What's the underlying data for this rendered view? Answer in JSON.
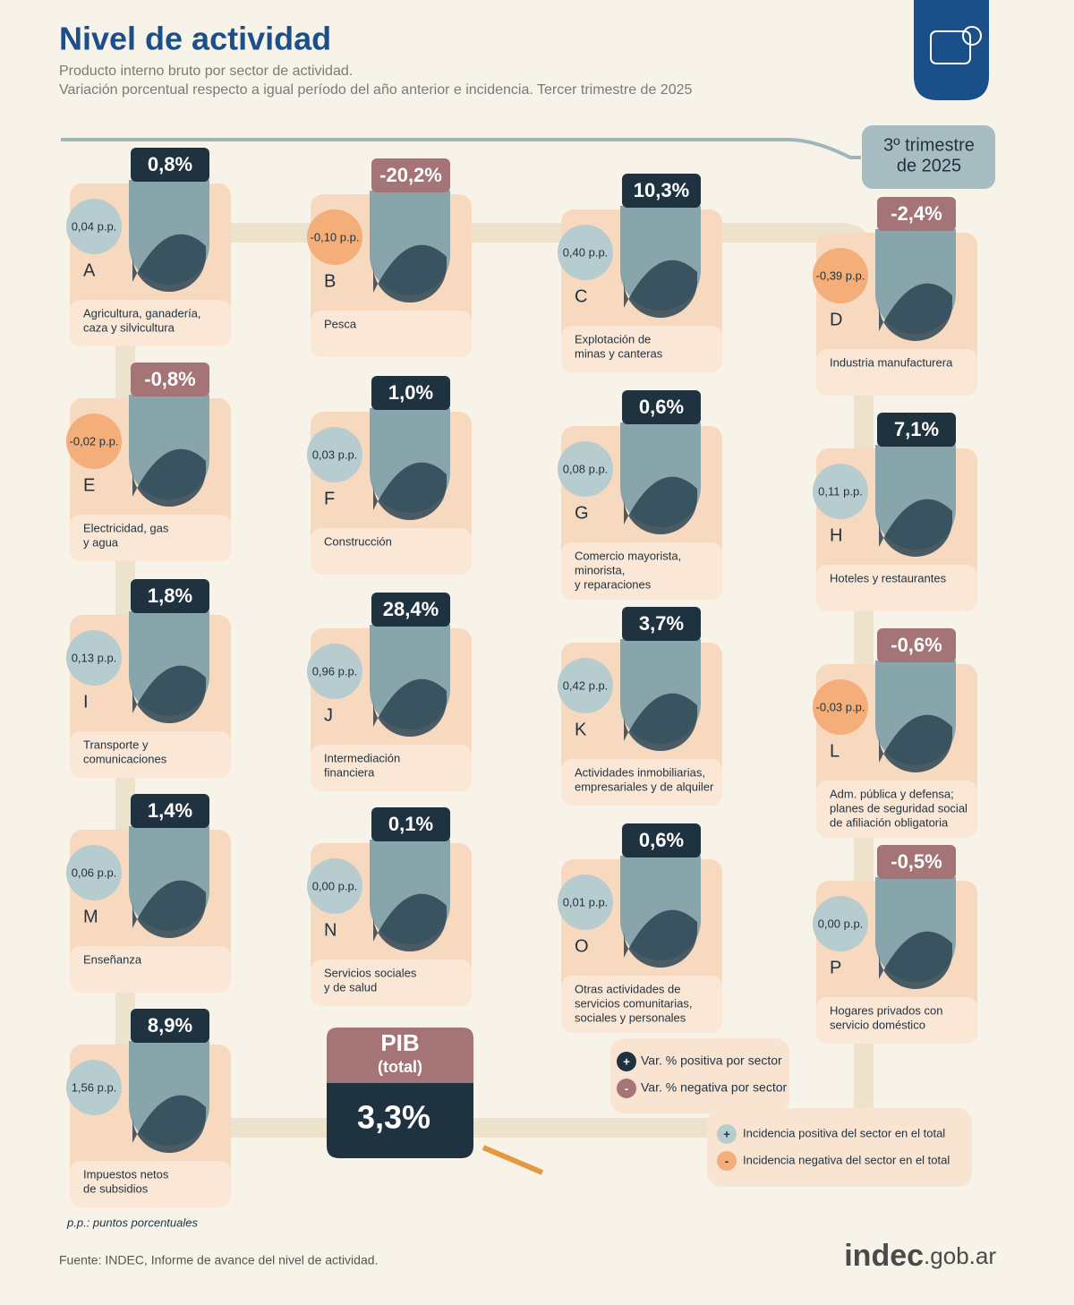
{
  "header": {
    "title": "Nivel de actividad",
    "subtitle": [
      "Producto interno bruto por sector de actividad.",
      "Variación porcentual respecto a igual período del año anterior e incidencia. Tercer trimestre de 2025"
    ]
  },
  "period": [
    "3º trimestre",
    "de 2025"
  ],
  "sectors": [
    {
      "letter": "A",
      "name": [
        "Agricultura, ganadería,",
        "caza y silvicultura"
      ],
      "variation": "0,8%",
      "incidence": "0,04 p.p."
    },
    {
      "letter": "B",
      "name": [
        "Pesca"
      ],
      "variation": "-20,2%",
      "incidence": "-0,10 p.p."
    },
    {
      "letter": "C",
      "name": [
        "Explotación de",
        "minas y canteras"
      ],
      "variation": "10,3%",
      "incidence": "0,40 p.p."
    },
    {
      "letter": "D",
      "name": [
        "Industria manufacturera"
      ],
      "variation": "-2,4%",
      "incidence": "-0,39 p.p."
    },
    {
      "letter": "E",
      "name": [
        "Electricidad, gas",
        "y agua"
      ],
      "variation": "-0,8%",
      "incidence": "-0,02 p.p."
    },
    {
      "letter": "F",
      "name": [
        "Construcción"
      ],
      "variation": "1,0%",
      "incidence": "0,03 p.p."
    },
    {
      "letter": "G",
      "name": [
        "Comercio mayorista,",
        "minorista,",
        "y reparaciones"
      ],
      "variation": "0,6%",
      "incidence": "0,08 p.p."
    },
    {
      "letter": "H",
      "name": [
        "Hoteles y restaurantes"
      ],
      "variation": "7,1%",
      "incidence": "0,11 p.p."
    },
    {
      "letter": "I",
      "name": [
        "Transporte y",
        "comunicaciones"
      ],
      "variation": "1,8%",
      "incidence": "0,13 p.p."
    },
    {
      "letter": "J",
      "name": [
        "Intermediación",
        "financiera"
      ],
      "variation": "28,4%",
      "incidence": "0,96 p.p."
    },
    {
      "letter": "K",
      "name": [
        "Actividades inmobiliarias,",
        "empresariales y de alquiler"
      ],
      "variation": "3,7%",
      "incidence": "0,42 p.p."
    },
    {
      "letter": "L",
      "name": [
        "Adm. pública y defensa;",
        "planes de seguridad social",
        "de afiliación obligatoria"
      ],
      "variation": "-0,6%",
      "incidence": "-0,03 p.p."
    },
    {
      "letter": "M",
      "name": [
        "Enseñanza"
      ],
      "variation": "1,4%",
      "incidence": "0,06 p.p."
    },
    {
      "letter": "N",
      "name": [
        "Servicios sociales",
        "y de salud"
      ],
      "variation": "0,1%",
      "incidence": "0,00 p.p."
    },
    {
      "letter": "O",
      "name": [
        "Otras actividades de",
        "servicios comunitarias,",
        "sociales y personales"
      ],
      "variation": "0,6%",
      "incidence": "0,01 p.p."
    },
    {
      "letter": "P",
      "name": [
        "Hogares privados con",
        "servicio doméstico"
      ],
      "variation": "-0,5%",
      "incidence": "0,00 p.p."
    },
    {
      "letter": null,
      "name": [
        "Impuestos netos",
        "de subsidios"
      ],
      "variation": "8,9%",
      "incidence": "1,56 p.p."
    }
  ],
  "total": {
    "label": "PIB",
    "sublabel": "(total)",
    "value": "3,3%"
  },
  "legend": [
    {
      "symbol": "+",
      "text": "Var. % positiva por sector"
    },
    {
      "symbol": "-",
      "text": "Var. % negativa por sector"
    },
    {
      "symbol": "+",
      "text": "Incidencia positiva del sector en el total"
    },
    {
      "symbol": "-",
      "text": "Incidencia negativa del sector en el total"
    }
  ],
  "footnote": "p.p.: puntos porcentuales",
  "source": "Fuente: INDEC, Informe de avance del nivel de actividad.",
  "logo": {
    "brand": "indec",
    "domain": ".gob.ar"
  }
}
